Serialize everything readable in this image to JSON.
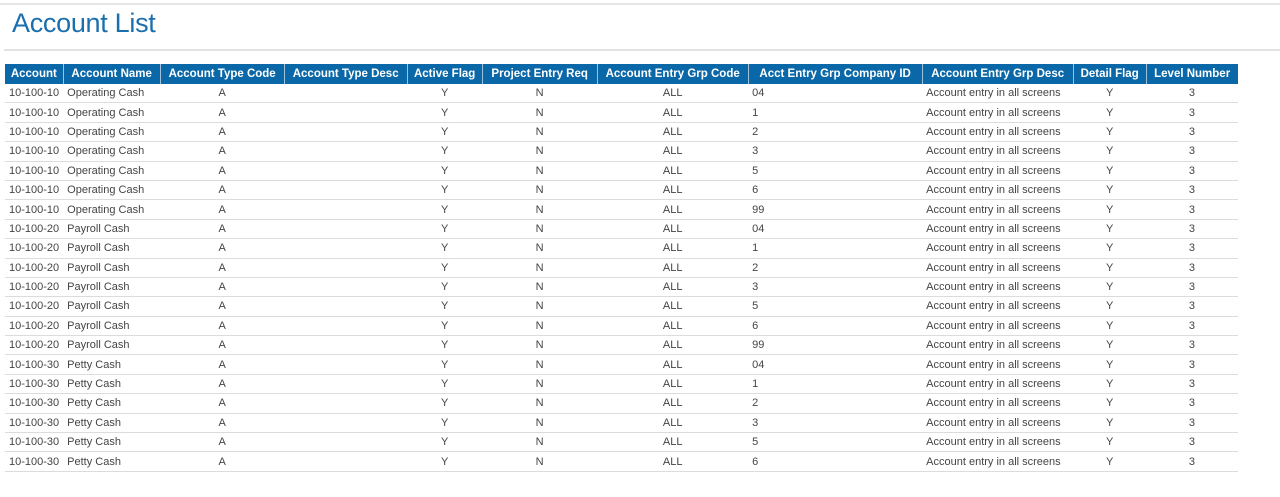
{
  "page_title": "Account List",
  "colors": {
    "header_bg": "#0a68a8",
    "title": "#1b6fae"
  },
  "columns": [
    "Account",
    "Account Name",
    "Account Type Code",
    "Account Type Desc",
    "Active Flag",
    "Project Entry Req",
    "Account Entry Grp Code",
    "Acct Entry Grp Company ID",
    "Account Entry Grp Desc",
    "Detail Flag",
    "Level Number"
  ],
  "rows": [
    [
      "10-100-10",
      "Operating Cash",
      "A",
      "",
      "Y",
      "N",
      "ALL",
      "04",
      "Account entry in all screens",
      "Y",
      "3"
    ],
    [
      "10-100-10",
      "Operating Cash",
      "A",
      "",
      "Y",
      "N",
      "ALL",
      "1",
      "Account entry in all screens",
      "Y",
      "3"
    ],
    [
      "10-100-10",
      "Operating Cash",
      "A",
      "",
      "Y",
      "N",
      "ALL",
      "2",
      "Account entry in all screens",
      "Y",
      "3"
    ],
    [
      "10-100-10",
      "Operating Cash",
      "A",
      "",
      "Y",
      "N",
      "ALL",
      "3",
      "Account entry in all screens",
      "Y",
      "3"
    ],
    [
      "10-100-10",
      "Operating Cash",
      "A",
      "",
      "Y",
      "N",
      "ALL",
      "5",
      "Account entry in all screens",
      "Y",
      "3"
    ],
    [
      "10-100-10",
      "Operating Cash",
      "A",
      "",
      "Y",
      "N",
      "ALL",
      "6",
      "Account entry in all screens",
      "Y",
      "3"
    ],
    [
      "10-100-10",
      "Operating Cash",
      "A",
      "",
      "Y",
      "N",
      "ALL",
      "99",
      "Account entry in all screens",
      "Y",
      "3"
    ],
    [
      "10-100-20",
      "Payroll Cash",
      "A",
      "",
      "Y",
      "N",
      "ALL",
      "04",
      "Account entry in all screens",
      "Y",
      "3"
    ],
    [
      "10-100-20",
      "Payroll Cash",
      "A",
      "",
      "Y",
      "N",
      "ALL",
      "1",
      "Account entry in all screens",
      "Y",
      "3"
    ],
    [
      "10-100-20",
      "Payroll Cash",
      "A",
      "",
      "Y",
      "N",
      "ALL",
      "2",
      "Account entry in all screens",
      "Y",
      "3"
    ],
    [
      "10-100-20",
      "Payroll Cash",
      "A",
      "",
      "Y",
      "N",
      "ALL",
      "3",
      "Account entry in all screens",
      "Y",
      "3"
    ],
    [
      "10-100-20",
      "Payroll Cash",
      "A",
      "",
      "Y",
      "N",
      "ALL",
      "5",
      "Account entry in all screens",
      "Y",
      "3"
    ],
    [
      "10-100-20",
      "Payroll Cash",
      "A",
      "",
      "Y",
      "N",
      "ALL",
      "6",
      "Account entry in all screens",
      "Y",
      "3"
    ],
    [
      "10-100-20",
      "Payroll Cash",
      "A",
      "",
      "Y",
      "N",
      "ALL",
      "99",
      "Account entry in all screens",
      "Y",
      "3"
    ],
    [
      "10-100-30",
      "Petty Cash",
      "A",
      "",
      "Y",
      "N",
      "ALL",
      "04",
      "Account entry in all screens",
      "Y",
      "3"
    ],
    [
      "10-100-30",
      "Petty Cash",
      "A",
      "",
      "Y",
      "N",
      "ALL",
      "1",
      "Account entry in all screens",
      "Y",
      "3"
    ],
    [
      "10-100-30",
      "Petty Cash",
      "A",
      "",
      "Y",
      "N",
      "ALL",
      "2",
      "Account entry in all screens",
      "Y",
      "3"
    ],
    [
      "10-100-30",
      "Petty Cash",
      "A",
      "",
      "Y",
      "N",
      "ALL",
      "3",
      "Account entry in all screens",
      "Y",
      "3"
    ],
    [
      "10-100-30",
      "Petty Cash",
      "A",
      "",
      "Y",
      "N",
      "ALL",
      "5",
      "Account entry in all screens",
      "Y",
      "3"
    ],
    [
      "10-100-30",
      "Petty Cash",
      "A",
      "",
      "Y",
      "N",
      "ALL",
      "6",
      "Account entry in all screens",
      "Y",
      "3"
    ]
  ]
}
